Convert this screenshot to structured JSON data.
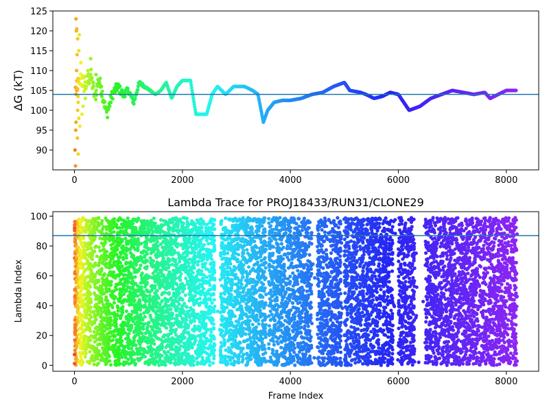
{
  "chart_data": [
    {
      "type": "scatter",
      "title": "",
      "xlabel": "",
      "ylabel_symbol": "ΔG",
      "ylabel_unit": "(kT)",
      "xlim": [
        -400,
        8600
      ],
      "ylim": [
        85,
        125
      ],
      "xticks": [
        0,
        2000,
        4000,
        6000,
        8000
      ],
      "yticks": [
        90,
        95,
        100,
        105,
        110,
        115,
        120,
        125
      ],
      "x_tick_labels": [
        "0",
        "2000",
        "4000",
        "6000",
        "8000"
      ],
      "y_tick_labels": [
        "90",
        "95",
        "100",
        "105",
        "110",
        "115",
        "120",
        "125"
      ],
      "colormap": "rainbow (red at early frames to violet at late frames)",
      "x_max": 8180,
      "reference_line": {
        "y": 104,
        "color": "#1f77b4"
      },
      "trace": [
        [
          50,
          104
        ],
        [
          120,
          108
        ],
        [
          200,
          106
        ],
        [
          300,
          109
        ],
        [
          380,
          103
        ],
        [
          450,
          108
        ],
        [
          520,
          104
        ],
        [
          600,
          99
        ],
        [
          700,
          104
        ],
        [
          800,
          106
        ],
        [
          900,
          104
        ],
        [
          1000,
          105
        ],
        [
          1100,
          102
        ],
        [
          1200,
          107
        ],
        [
          1300,
          106
        ],
        [
          1400,
          105
        ],
        [
          1500,
          104
        ],
        [
          1600,
          105
        ],
        [
          1700,
          107
        ],
        [
          1800,
          103
        ],
        [
          1900,
          106
        ],
        [
          2000,
          107.5
        ],
        [
          2150,
          107.5
        ],
        [
          2250,
          99
        ],
        [
          2450,
          99
        ],
        [
          2550,
          104
        ],
        [
          2650,
          106
        ],
        [
          2800,
          104
        ],
        [
          2950,
          106
        ],
        [
          3150,
          106
        ],
        [
          3300,
          105
        ],
        [
          3400,
          104
        ],
        [
          3500,
          97
        ],
        [
          3580,
          100
        ],
        [
          3700,
          102
        ],
        [
          3850,
          102.5
        ],
        [
          4000,
          102.5
        ],
        [
          4200,
          103
        ],
        [
          4400,
          104
        ],
        [
          4600,
          104.5
        ],
        [
          4800,
          106
        ],
        [
          5000,
          107
        ],
        [
          5100,
          105
        ],
        [
          5300,
          104.5
        ],
        [
          5400,
          104
        ],
        [
          5550,
          103
        ],
        [
          5700,
          103.5
        ],
        [
          5850,
          104.5
        ],
        [
          6000,
          104
        ],
        [
          6100,
          102
        ],
        [
          6200,
          100
        ],
        [
          6400,
          101
        ],
        [
          6600,
          103
        ],
        [
          6800,
          104
        ],
        [
          7000,
          105
        ],
        [
          7200,
          104.5
        ],
        [
          7400,
          104
        ],
        [
          7600,
          104.5
        ],
        [
          7700,
          103
        ],
        [
          7850,
          104
        ],
        [
          8000,
          105
        ],
        [
          8180,
          105
        ]
      ],
      "early_scatter": [
        [
          10,
          90
        ],
        [
          20,
          86
        ],
        [
          30,
          97
        ],
        [
          40,
          110
        ],
        [
          50,
          114
        ],
        [
          60,
          100
        ],
        [
          70,
          102
        ],
        [
          80,
          98
        ],
        [
          100,
          96
        ],
        [
          120,
          112
        ],
        [
          140,
          99
        ],
        [
          160,
          101
        ],
        [
          200,
          103
        ],
        [
          250,
          110
        ],
        [
          300,
          113
        ],
        [
          350,
          107
        ],
        [
          400,
          109
        ],
        [
          500,
          106
        ]
      ]
    },
    {
      "type": "scatter",
      "title": "Lambda Trace for PROJ18433/RUN31/CLONE29",
      "xlabel": "Frame Index",
      "ylabel": "Lambda Index",
      "xlim": [
        -400,
        8600
      ],
      "ylim": [
        -4,
        103
      ],
      "xticks": [
        0,
        2000,
        4000,
        6000,
        8000
      ],
      "yticks": [
        0,
        20,
        40,
        60,
        80,
        100
      ],
      "x_tick_labels": [
        "0",
        "2000",
        "4000",
        "6000",
        "8000"
      ],
      "y_tick_labels": [
        "0",
        "20",
        "40",
        "60",
        "80",
        "100"
      ],
      "colormap": "rainbow (red at early frames to violet at late frames)",
      "lambda_range": [
        0,
        99
      ],
      "reference_line": {
        "y": 87,
        "color": "#1f77b4"
      },
      "dense_regions": [
        [
          0,
          2300
        ],
        [
          2300,
          2600
        ],
        [
          2700,
          3200
        ],
        [
          3200,
          3550
        ],
        [
          3600,
          4400
        ],
        [
          4500,
          4950
        ],
        [
          5000,
          5900
        ],
        [
          6000,
          6300
        ],
        [
          6500,
          6800
        ],
        [
          6800,
          8200
        ]
      ]
    }
  ]
}
